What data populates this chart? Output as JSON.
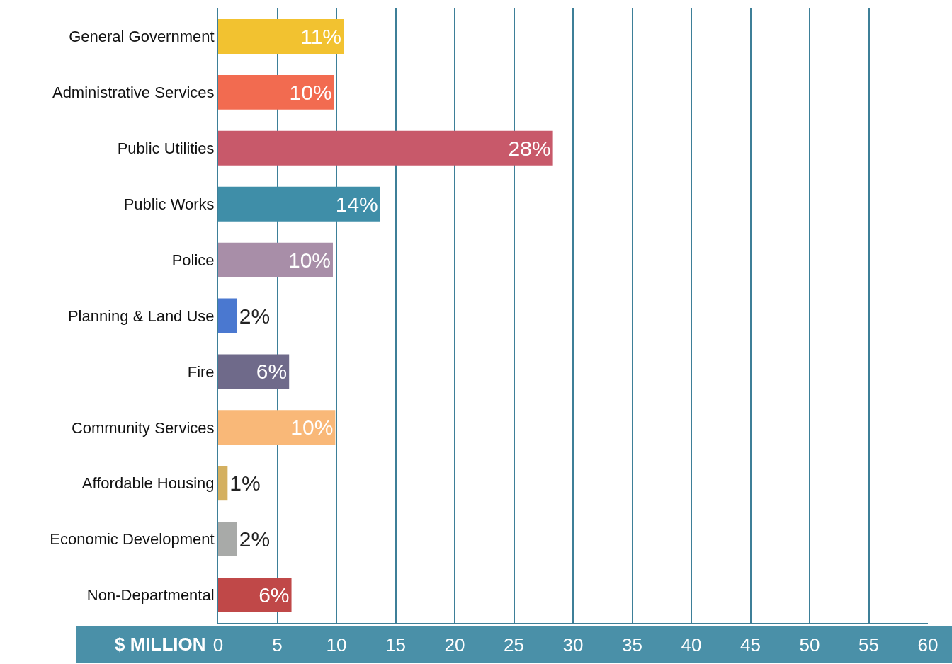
{
  "chart_data": {
    "type": "bar",
    "orientation": "horizontal",
    "xlabel": "$ MILLION",
    "categories": [
      "General Government",
      "Administrative Services",
      "Public Utilities",
      "Public Works",
      "Police",
      "Planning & Land Use",
      "Fire",
      "Community Services",
      "Affordable Housing",
      "Economic Development",
      "Non-Departmental"
    ],
    "values": [
      10.6,
      9.8,
      28.3,
      13.7,
      9.7,
      1.6,
      6.0,
      9.9,
      0.8,
      1.6,
      6.2
    ],
    "value_labels": [
      "11%",
      "10%",
      "28%",
      "14%",
      "10%",
      "2%",
      "6%",
      "10%",
      "1%",
      "2%",
      "6%"
    ],
    "colors": [
      "#f2c230",
      "#f26b50",
      "#c8596a",
      "#3f8ea8",
      "#a88ea8",
      "#4a78d0",
      "#6f6a8a",
      "#f9b878",
      "#d4b060",
      "#a8aaa8",
      "#c04848"
    ],
    "xlim": [
      0,
      60
    ],
    "xticks": [
      0,
      5,
      10,
      15,
      20,
      25,
      30,
      35,
      40,
      45,
      50,
      55,
      60
    ],
    "grid": "x",
    "legend": false
  }
}
